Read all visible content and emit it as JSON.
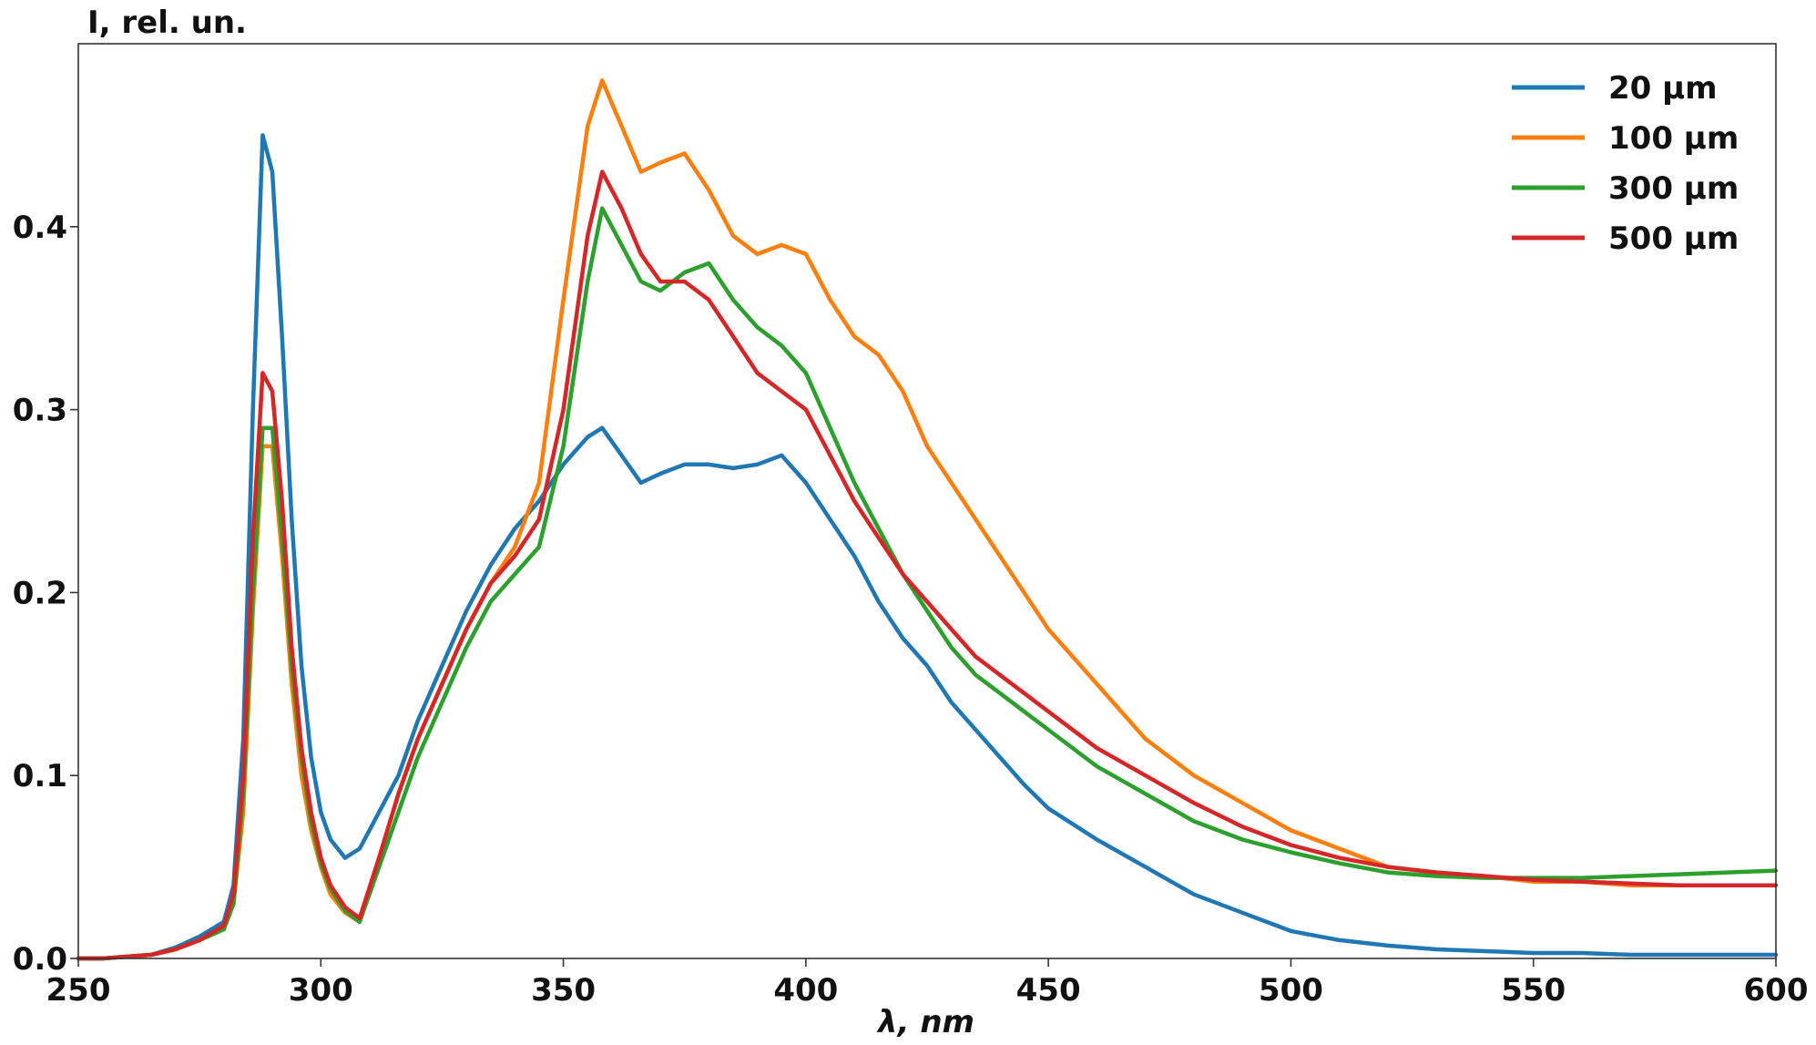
{
  "chart_data": {
    "type": "line",
    "title": "",
    "xlabel": "λ, nm",
    "ylabel": "I, rel. un.",
    "xlim": [
      250,
      600
    ],
    "ylim": [
      0,
      0.5
    ],
    "xticks": [
      250,
      300,
      350,
      400,
      450,
      500,
      550,
      600
    ],
    "xtick_labels": [
      "250",
      "300",
      "350",
      "400",
      "450",
      "500",
      "550",
      "600"
    ],
    "yticks": [
      0.0,
      0.1,
      0.2,
      0.3,
      0.4
    ],
    "ytick_labels": [
      "0.0",
      "0.1",
      "0.2",
      "0.3",
      "0.4"
    ],
    "grid": false,
    "legend_position": "top-right",
    "x": [
      250,
      255,
      260,
      265,
      270,
      275,
      280,
      282,
      284,
      286,
      288,
      290,
      292,
      294,
      296,
      298,
      300,
      302,
      305,
      308,
      312,
      316,
      320,
      325,
      330,
      335,
      340,
      345,
      350,
      355,
      358,
      362,
      366,
      370,
      375,
      380,
      385,
      390,
      395,
      400,
      405,
      410,
      415,
      420,
      425,
      430,
      435,
      440,
      445,
      450,
      460,
      470,
      480,
      490,
      500,
      510,
      520,
      530,
      540,
      550,
      560,
      570,
      580,
      590,
      600
    ],
    "series": [
      {
        "name": "20 μm",
        "color": "#1f77b4",
        "values": [
          0.0,
          0.0,
          0.001,
          0.002,
          0.006,
          0.012,
          0.02,
          0.04,
          0.12,
          0.3,
          0.45,
          0.43,
          0.34,
          0.24,
          0.16,
          0.11,
          0.08,
          0.065,
          0.055,
          0.06,
          0.08,
          0.1,
          0.13,
          0.16,
          0.19,
          0.215,
          0.235,
          0.25,
          0.27,
          0.285,
          0.29,
          0.275,
          0.26,
          0.265,
          0.27,
          0.27,
          0.268,
          0.27,
          0.275,
          0.26,
          0.24,
          0.22,
          0.195,
          0.175,
          0.16,
          0.14,
          0.125,
          0.11,
          0.095,
          0.082,
          0.065,
          0.05,
          0.035,
          0.025,
          0.015,
          0.01,
          0.007,
          0.005,
          0.004,
          0.003,
          0.003,
          0.002,
          0.002,
          0.002,
          0.002
        ]
      },
      {
        "name": "100 μm",
        "color": "#ff7f0e",
        "values": [
          0.0,
          0.0,
          0.001,
          0.002,
          0.005,
          0.01,
          0.016,
          0.03,
          0.08,
          0.19,
          0.28,
          0.28,
          0.22,
          0.15,
          0.1,
          0.07,
          0.05,
          0.035,
          0.025,
          0.02,
          0.055,
          0.09,
          0.12,
          0.15,
          0.18,
          0.205,
          0.225,
          0.26,
          0.36,
          0.455,
          0.48,
          0.455,
          0.43,
          0.435,
          0.44,
          0.42,
          0.395,
          0.385,
          0.39,
          0.385,
          0.36,
          0.34,
          0.33,
          0.31,
          0.28,
          0.26,
          0.24,
          0.22,
          0.2,
          0.18,
          0.15,
          0.12,
          0.1,
          0.085,
          0.07,
          0.06,
          0.05,
          0.047,
          0.045,
          0.042,
          0.042,
          0.04,
          0.04,
          0.04,
          0.04
        ]
      },
      {
        "name": "300 μm",
        "color": "#2ca02c",
        "values": [
          0.0,
          0.0,
          0.001,
          0.002,
          0.005,
          0.01,
          0.016,
          0.03,
          0.09,
          0.2,
          0.29,
          0.29,
          0.23,
          0.16,
          0.11,
          0.075,
          0.052,
          0.038,
          0.026,
          0.02,
          0.05,
          0.08,
          0.11,
          0.14,
          0.17,
          0.195,
          0.21,
          0.225,
          0.28,
          0.37,
          0.41,
          0.39,
          0.37,
          0.365,
          0.375,
          0.38,
          0.36,
          0.345,
          0.335,
          0.32,
          0.29,
          0.26,
          0.235,
          0.21,
          0.19,
          0.17,
          0.155,
          0.145,
          0.135,
          0.125,
          0.105,
          0.09,
          0.075,
          0.065,
          0.058,
          0.052,
          0.047,
          0.045,
          0.044,
          0.044,
          0.044,
          0.045,
          0.046,
          0.047,
          0.048
        ]
      },
      {
        "name": "500 μm",
        "color": "#d62728",
        "values": [
          0.0,
          0.0,
          0.001,
          0.002,
          0.005,
          0.01,
          0.018,
          0.035,
          0.1,
          0.23,
          0.32,
          0.31,
          0.25,
          0.17,
          0.115,
          0.08,
          0.055,
          0.04,
          0.028,
          0.022,
          0.055,
          0.09,
          0.12,
          0.15,
          0.18,
          0.205,
          0.22,
          0.24,
          0.3,
          0.395,
          0.43,
          0.41,
          0.385,
          0.37,
          0.37,
          0.36,
          0.34,
          0.32,
          0.31,
          0.3,
          0.275,
          0.25,
          0.23,
          0.21,
          0.195,
          0.18,
          0.165,
          0.155,
          0.145,
          0.135,
          0.115,
          0.1,
          0.085,
          0.072,
          0.062,
          0.055,
          0.05,
          0.047,
          0.045,
          0.043,
          0.042,
          0.041,
          0.04,
          0.04,
          0.04
        ]
      }
    ]
  },
  "legend": {
    "items": [
      "20 μm",
      "100 μm",
      "300 μm",
      "500 μm"
    ]
  }
}
